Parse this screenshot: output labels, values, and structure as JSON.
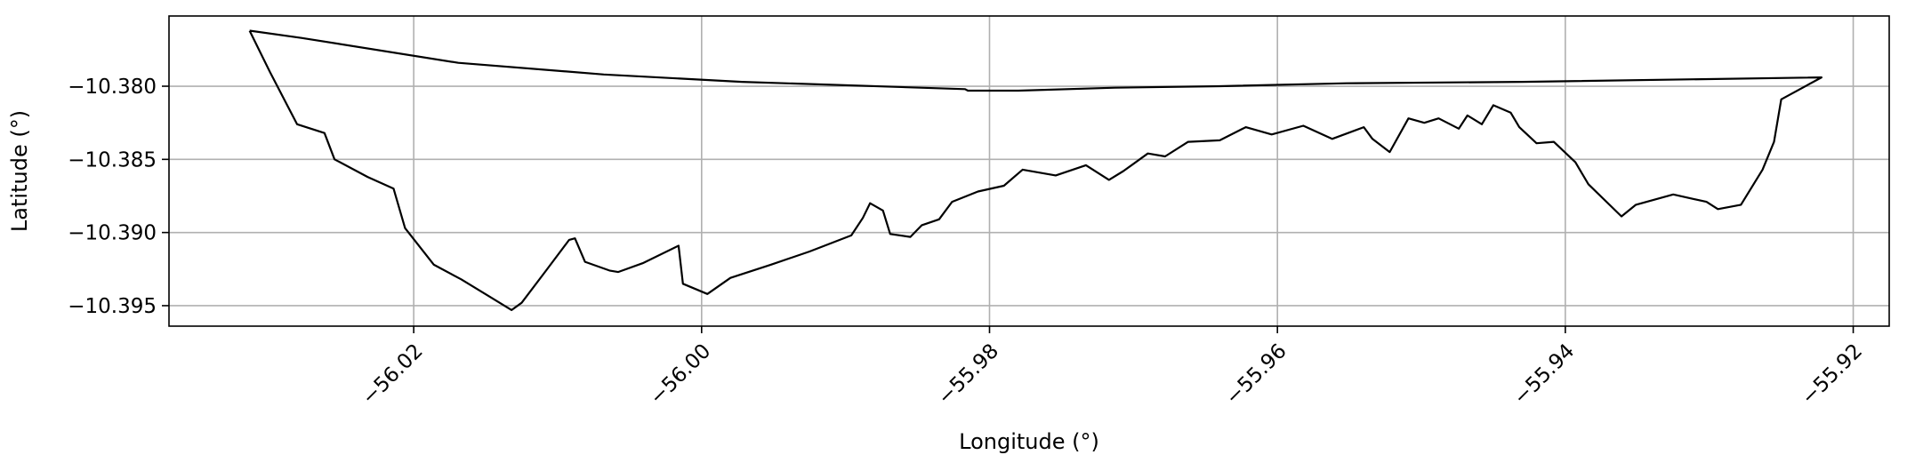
{
  "chart_data": {
    "type": "line",
    "title": "",
    "xlabel": "Longitude (°)",
    "ylabel": "Latitude (°)",
    "xlim": [
      -56.037,
      -55.9175
    ],
    "ylim": [
      -10.3964,
      -10.3752
    ],
    "grid": true,
    "xticks": [
      -56.02,
      -56.0,
      -55.98,
      -55.96,
      -55.94,
      -55.92
    ],
    "xtick_labels": [
      "−56.02",
      "−56.00",
      "−55.98",
      "−55.96",
      "−55.94",
      "−55.92"
    ],
    "yticks": [
      -10.38,
      -10.385,
      -10.39,
      -10.395
    ],
    "ytick_labels": [
      "−10.380",
      "−10.385",
      "−10.390",
      "−10.395"
    ],
    "series": [
      {
        "line_color": "#000000",
        "x": [
          -56.0314,
          -56.0278,
          -56.0169,
          -56.0068,
          -55.9972,
          -55.9817,
          -55.9815,
          -55.978,
          -55.9713,
          -55.964,
          -55.9552,
          -55.943,
          -55.9222,
          -55.925,
          -55.9255,
          -55.9263,
          -55.9278,
          -55.9294,
          -55.9302,
          -55.9325,
          -55.9351,
          -55.9361,
          -55.9384,
          -55.9393,
          -55.9408,
          -55.942,
          -55.9432,
          -55.9438,
          -55.945,
          -55.9458,
          -55.9468,
          -55.9474,
          -55.9488,
          -55.9498,
          -55.9509,
          -55.9522,
          -55.9534,
          -55.954,
          -55.9562,
          -55.9582,
          -55.9604,
          -55.9622,
          -55.964,
          -55.9662,
          -55.9678,
          -55.969,
          -55.9707,
          -55.9717,
          -55.9733,
          -55.9754,
          -55.9777,
          -55.979,
          -55.9808,
          -55.9826,
          -55.9835,
          -55.9847,
          -55.9855,
          -55.9869,
          -55.9874,
          -55.9883,
          -55.9888,
          -55.9896,
          -55.9925,
          -55.9952,
          -55.998,
          -55.9996,
          -56.0013,
          -56.0016,
          -56.0041,
          -56.0058,
          -56.0064,
          -56.0081,
          -56.0088,
          -56.0092,
          -56.0108,
          -56.0125,
          -56.0132,
          -56.0147,
          -56.0167,
          -56.0186,
          -56.0206,
          -56.0214,
          -56.0232,
          -56.0255,
          -56.0262,
          -56.0281,
          -56.03,
          -56.0314
        ],
        "y": [
          -10.3762,
          -10.3767,
          -10.3784,
          -10.3792,
          -10.3797,
          -10.3802,
          -10.3803,
          -10.3803,
          -10.3801,
          -10.38,
          -10.3798,
          -10.3797,
          -10.3794,
          -10.3809,
          -10.3838,
          -10.3857,
          -10.3881,
          -10.3884,
          -10.3879,
          -10.3874,
          -10.3881,
          -10.3889,
          -10.3867,
          -10.3852,
          -10.3838,
          -10.3839,
          -10.3828,
          -10.3818,
          -10.3813,
          -10.3826,
          -10.382,
          -10.3829,
          -10.3822,
          -10.3825,
          -10.3822,
          -10.3845,
          -10.3836,
          -10.3828,
          -10.3836,
          -10.3827,
          -10.3833,
          -10.3828,
          -10.3837,
          -10.3838,
          -10.3848,
          -10.3846,
          -10.3858,
          -10.3864,
          -10.3854,
          -10.3861,
          -10.3857,
          -10.3868,
          -10.3872,
          -10.3879,
          -10.3891,
          -10.3895,
          -10.3903,
          -10.3901,
          -10.3885,
          -10.388,
          -10.389,
          -10.3902,
          -10.3913,
          -10.3922,
          -10.3931,
          -10.3942,
          -10.3935,
          -10.3909,
          -10.3921,
          -10.3927,
          -10.3926,
          -10.392,
          -10.3904,
          -10.3905,
          -10.3926,
          -10.3948,
          -10.3953,
          -10.3944,
          -10.3932,
          -10.3922,
          -10.3897,
          -10.387,
          -10.3862,
          -10.385,
          -10.3832,
          -10.3826,
          -10.379,
          -10.3762
        ]
      }
    ]
  }
}
